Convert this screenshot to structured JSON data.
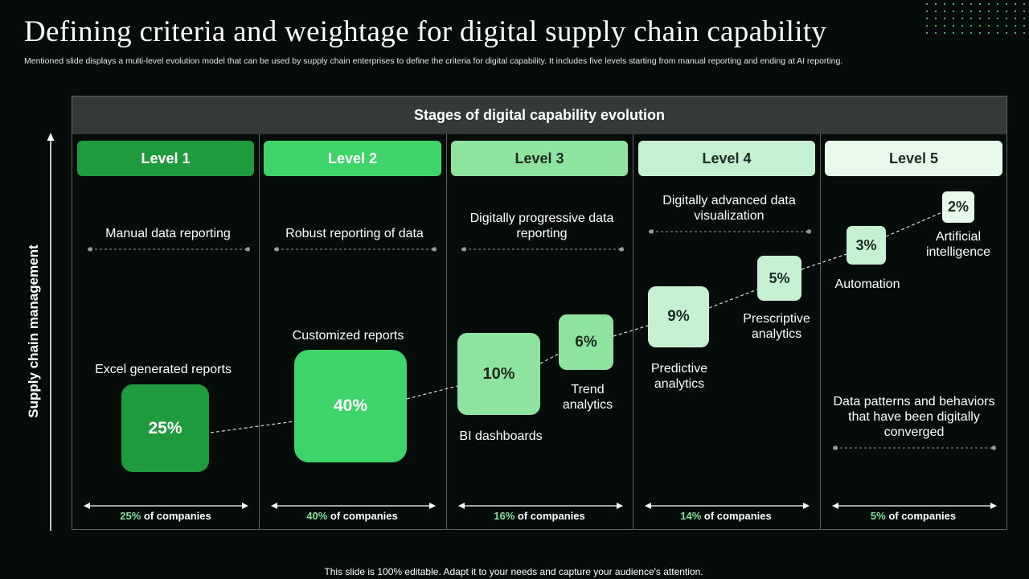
{
  "title": "Defining criteria and weightage for digital supply chain capability",
  "subtitle": "Mentioned slide displays a multi-level evolution model that can be used by supply chain enterprises to define the criteria for digital capability. It includes five levels starting from manual reporting and ending at AI reporting.",
  "y_axis_label": "Supply chain management",
  "board_header": "Stages of digital capability evolution",
  "levels": [
    {
      "label": "Level 1",
      "description": "Manual data reporting",
      "share": "25%",
      "share_suffix": "of companies",
      "bg": "#1f9a3c",
      "fg": "#ffffff"
    },
    {
      "label": "Level 2",
      "description": "Robust reporting of data",
      "share": "40%",
      "share_suffix": "of companies",
      "bg": "#3ed46a",
      "fg": "#ffffff"
    },
    {
      "label": "Level 3",
      "description": "Digitally progressive data reporting",
      "share": "16%",
      "share_suffix": "of companies",
      "bg": "#8ee49f",
      "fg": "#1e2a24"
    },
    {
      "label": "Level 4",
      "description": "Digitally advanced data visualization",
      "share": "14%",
      "share_suffix": "of companies",
      "bg": "#c6f1d0",
      "fg": "#1e2a24"
    },
    {
      "label": "Level 5",
      "description": "Data patterns and behaviors that have been digitally converged",
      "share": "5%",
      "share_suffix": "of companies",
      "bg": "#e6f9ea",
      "fg": "#1e2a24"
    }
  ],
  "capabilities": [
    {
      "key": "excel",
      "value": "25%",
      "label": "Excel generated reports",
      "color": "#1f9a3c"
    },
    {
      "key": "custom",
      "value": "40%",
      "label": "Customized reports",
      "color": "#3ed46a"
    },
    {
      "key": "bi",
      "value": "10%",
      "label": "BI dashboards",
      "color": "#8ee49f"
    },
    {
      "key": "trend",
      "value": "6%",
      "label": "Trend analytics",
      "color": "#8ee49f"
    },
    {
      "key": "predictive",
      "value": "9%",
      "label": "Predictive analytics",
      "color": "#c6f1d0"
    },
    {
      "key": "prescriptive",
      "value": "5%",
      "label": "Prescriptive analytics",
      "color": "#c6f1d0"
    },
    {
      "key": "automation",
      "value": "3%",
      "label": "Automation",
      "color": "#c6f1d0"
    },
    {
      "key": "ai",
      "value": "2%",
      "label": "Artificial intelligence",
      "color": "#e6f9ea"
    }
  ],
  "footer": "This slide is 100% editable. Adapt it to your needs and capture your audience's attention."
}
